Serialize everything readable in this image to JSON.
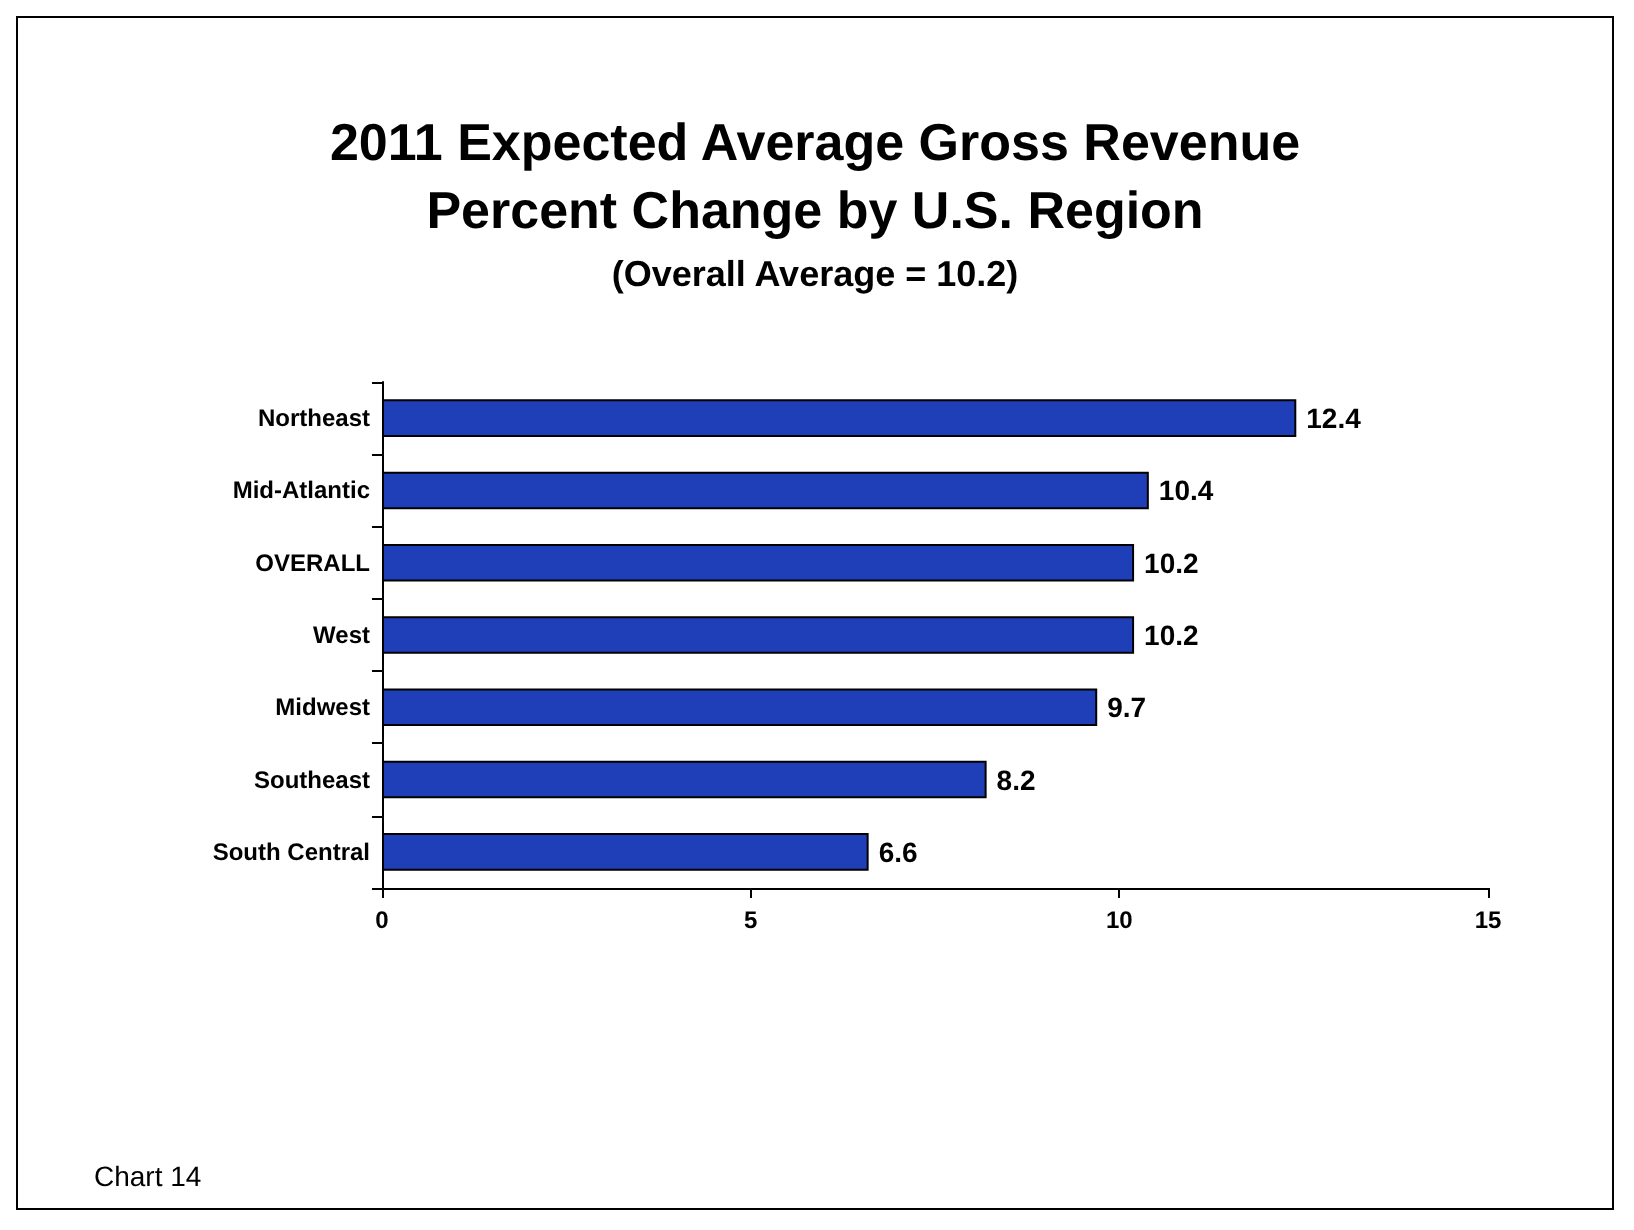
{
  "chart_data": {
    "type": "bar",
    "orientation": "horizontal",
    "title": "2011 Expected Average Gross Revenue\nPercent Change by U.S. Region",
    "subtitle": "(Overall Average = 10.2)",
    "categories": [
      "Northeast",
      "Mid-Atlantic",
      "OVERALL",
      "West",
      "Midwest",
      "Southeast",
      "South Central"
    ],
    "values": [
      12.4,
      10.4,
      10.2,
      10.2,
      9.7,
      8.2,
      6.6
    ],
    "color": "#1f3fb8",
    "xlim": [
      0,
      15
    ],
    "xticks": [
      0,
      5,
      10,
      15
    ],
    "data_labels": true,
    "grid": false,
    "annotations": [
      "Chart 14"
    ]
  }
}
